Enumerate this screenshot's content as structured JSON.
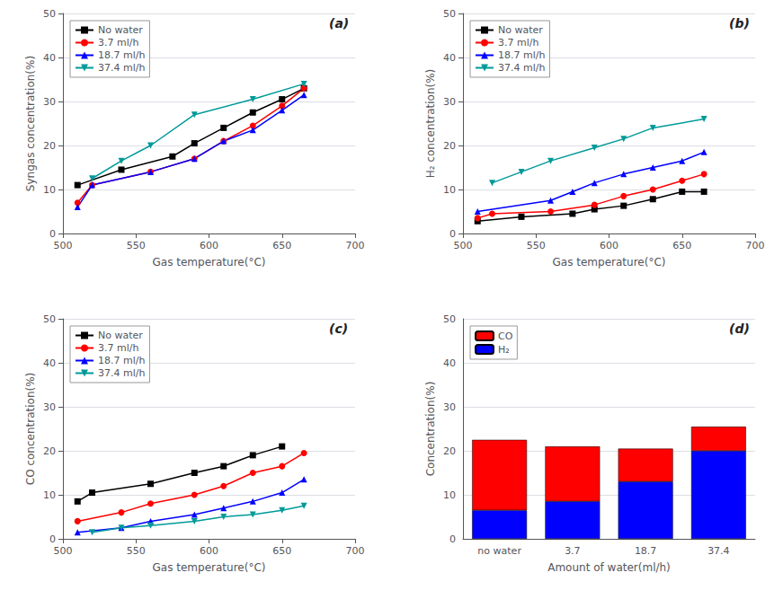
{
  "chart_data": [
    {
      "type": "line",
      "annotation": "(a)",
      "xlabel": "Gas temperature(°C)",
      "ylabel": "Syngas concentration(%)",
      "x": [
        510,
        520,
        540,
        560,
        575,
        590,
        610,
        630,
        650,
        665
      ],
      "series": [
        {
          "name": "No water",
          "color": "black",
          "marker": "square",
          "values": [
            11.0,
            null,
            14.5,
            null,
            17.5,
            20.5,
            24.0,
            27.5,
            30.5,
            33.0
          ]
        },
        {
          "name": "3.7 ml/h",
          "color": "red",
          "marker": "circle",
          "values": [
            7.0,
            11.0,
            null,
            14.0,
            null,
            17.0,
            21.0,
            24.5,
            29.0,
            33.0
          ]
        },
        {
          "name": "18.7 ml/h",
          "color": "blue",
          "marker": "triangle",
          "values": [
            6.0,
            11.0,
            null,
            14.0,
            null,
            17.0,
            21.0,
            23.5,
            28.0,
            31.5
          ]
        },
        {
          "name": "37.4 ml/h",
          "color": "#009999",
          "marker": "triangle-down",
          "values": [
            null,
            12.5,
            16.5,
            20.0,
            null,
            27.0,
            null,
            30.5,
            null,
            34.0
          ]
        }
      ],
      "xlim": [
        500,
        700
      ],
      "xticks": [
        500,
        550,
        600,
        650,
        700
      ],
      "ylim": [
        0,
        50
      ],
      "yticks": [
        0,
        10,
        20,
        30,
        40,
        50
      ],
      "grid": "y",
      "legend": "upper left"
    },
    {
      "type": "line",
      "annotation": "(b)",
      "xlabel": "Gas temperature(°C)",
      "ylabel": "H₂ concentration(%)",
      "x": [
        510,
        520,
        540,
        560,
        575,
        590,
        610,
        630,
        650,
        665
      ],
      "series": [
        {
          "name": "No water",
          "color": "black",
          "marker": "square",
          "values": [
            2.8,
            null,
            3.8,
            null,
            4.5,
            5.5,
            6.3,
            7.8,
            9.5,
            9.5
          ]
        },
        {
          "name": "3.7 ml/h",
          "color": "red",
          "marker": "circle",
          "values": [
            3.5,
            4.5,
            null,
            5.0,
            null,
            6.5,
            8.5,
            10.0,
            12.0,
            13.5
          ]
        },
        {
          "name": "18.7 ml/h",
          "color": "blue",
          "marker": "triangle",
          "values": [
            5.0,
            null,
            null,
            7.5,
            9.5,
            11.5,
            13.5,
            15.0,
            16.5,
            18.5
          ]
        },
        {
          "name": "37.4 ml/h",
          "color": "#009999",
          "marker": "triangle-down",
          "values": [
            null,
            11.5,
            14.0,
            16.5,
            null,
            19.5,
            21.5,
            24.0,
            null,
            26.0
          ]
        }
      ],
      "xlim": [
        500,
        700
      ],
      "xticks": [
        500,
        550,
        600,
        650,
        700
      ],
      "ylim": [
        0,
        50
      ],
      "yticks": [
        0,
        10,
        20,
        30,
        40,
        50
      ],
      "grid": "y",
      "legend": "upper left"
    },
    {
      "type": "line",
      "annotation": "(c)",
      "xlabel": "Gas temperature(°C)",
      "ylabel": "CO concentration(%)",
      "x": [
        510,
        520,
        540,
        560,
        575,
        590,
        610,
        630,
        650,
        665
      ],
      "series": [
        {
          "name": "No water",
          "color": "black",
          "marker": "square",
          "values": [
            8.5,
            10.5,
            null,
            12.5,
            null,
            15.0,
            16.5,
            19.0,
            21.0,
            null
          ]
        },
        {
          "name": "3.7 ml/h",
          "color": "red",
          "marker": "circle",
          "values": [
            4.0,
            null,
            6.0,
            8.0,
            null,
            10.0,
            12.0,
            15.0,
            16.5,
            19.5
          ]
        },
        {
          "name": "18.7 ml/h",
          "color": "blue",
          "marker": "triangle",
          "values": [
            1.5,
            null,
            2.5,
            4.0,
            null,
            5.5,
            7.0,
            8.5,
            10.5,
            13.5
          ]
        },
        {
          "name": "37.4 ml/h",
          "color": "#009999",
          "marker": "triangle-down",
          "values": [
            null,
            1.5,
            2.5,
            3.0,
            null,
            4.0,
            5.0,
            5.5,
            6.5,
            7.5
          ]
        }
      ],
      "xlim": [
        500,
        700
      ],
      "xticks": [
        500,
        550,
        600,
        650,
        700
      ],
      "ylim": [
        0,
        50
      ],
      "yticks": [
        0,
        10,
        20,
        30,
        40,
        50
      ],
      "grid": "y",
      "legend": "upper left"
    },
    {
      "type": "bar",
      "annotation": "(d)",
      "xlabel": "Amount of water(ml/h)",
      "ylabel": "Concentration(%)",
      "categories": [
        "no water",
        "3.7",
        "18.7",
        "37.4"
      ],
      "stacked": true,
      "series": [
        {
          "name": "H₂",
          "color": "blue",
          "values": [
            6.5,
            8.5,
            13.0,
            20.0
          ]
        },
        {
          "name": "CO",
          "color": "red",
          "values": [
            16.0,
            12.5,
            7.5,
            5.5
          ]
        }
      ],
      "ylim": [
        0,
        50
      ],
      "yticks": [
        0,
        10,
        20,
        30,
        40,
        50
      ],
      "grid": "y",
      "legend": "upper left"
    }
  ]
}
